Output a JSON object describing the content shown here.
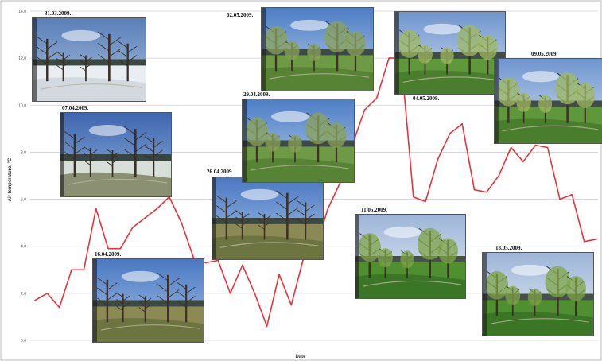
{
  "chart_data": {
    "type": "line",
    "title": "",
    "xlabel": "Date",
    "ylabel": "Air temperature, °C",
    "ylim": [
      0,
      14
    ],
    "yticks": [
      {
        "value": 0,
        "label": "0.0"
      },
      {
        "value": 2,
        "label": "2.0"
      },
      {
        "value": 4,
        "label": "4.0"
      },
      {
        "value": 6,
        "label": "6.0"
      },
      {
        "value": 8,
        "label": "8.0"
      },
      {
        "value": 10,
        "label": "10.0"
      },
      {
        "value": 12,
        "label": "12.0"
      },
      {
        "value": 14,
        "label": "14.0"
      }
    ],
    "grid": true,
    "line_color": "#e8323c",
    "series": [
      {
        "values": [
          1.7,
          2.0,
          1.4,
          3.0,
          3.0,
          5.6,
          3.9,
          3.9,
          4.8,
          5.2,
          5.6,
          6.1,
          5.0,
          3.5,
          3.3,
          3.4,
          2.0,
          3.2,
          2.0,
          0.6,
          2.8,
          1.5,
          3.5,
          3.9,
          5.6,
          6.7,
          8.3,
          9.8,
          10.3,
          12.0,
          12.0,
          6.1,
          5.9,
          7.7,
          8.8,
          9.2,
          6.4,
          6.3,
          7.0,
          8.2,
          7.6,
          8.3,
          8.2,
          6.0,
          6.2,
          4.2,
          4.3
        ]
      }
    ],
    "photos": [
      {
        "label": "31.03.2009.",
        "scene": "snow"
      },
      {
        "label": "07.04.2009.",
        "scene": "snowmelt"
      },
      {
        "label": "16.04.2009.",
        "scene": "early"
      },
      {
        "label": "26.04.2009.",
        "scene": "early"
      },
      {
        "label": "29.04.2009.",
        "scene": "green"
      },
      {
        "label": "02.05.2009.",
        "scene": "green"
      },
      {
        "label": "04.05.2009.",
        "scene": "leafy"
      },
      {
        "label": "09.05.2009.",
        "scene": "leafy"
      },
      {
        "label": "11.05.2009.",
        "scene": "full"
      },
      {
        "label": "18.05.2009.",
        "scene": "full"
      }
    ]
  }
}
